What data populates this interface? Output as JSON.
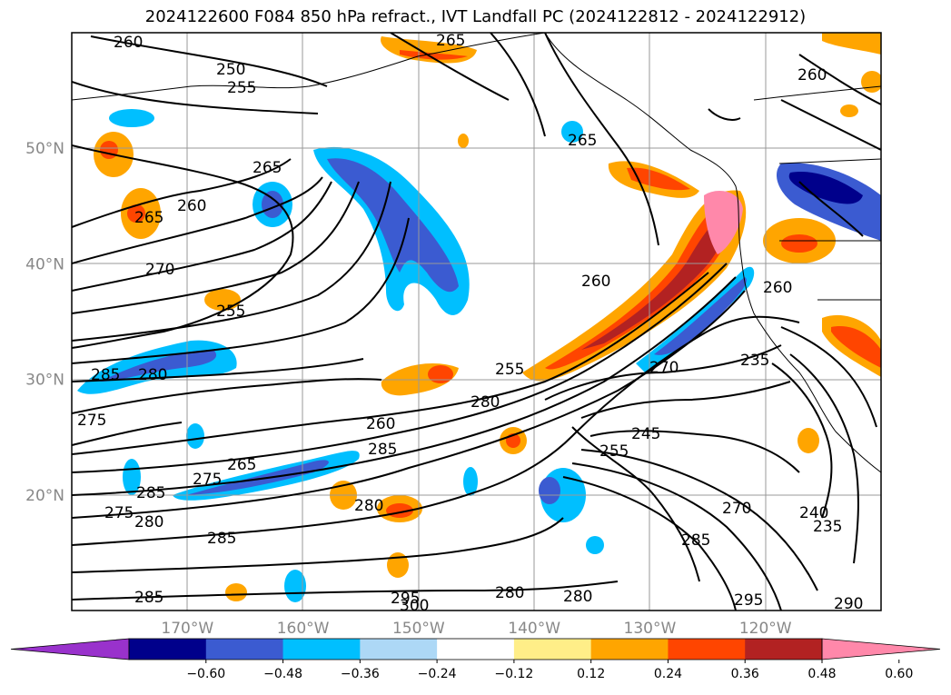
{
  "title": "2024122600 F084 850 hPa refract., IVT Landfall PC (2024122812 - 2024122912)",
  "map": {
    "lon_range": [
      -180,
      -110
    ],
    "lat_range": [
      10,
      60
    ],
    "lat_ticks": [
      {
        "value": 50,
        "label": "50°N"
      },
      {
        "value": 40,
        "label": "40°N"
      },
      {
        "value": 30,
        "label": "30°N"
      },
      {
        "value": 20,
        "label": "20°N"
      }
    ],
    "lon_ticks": [
      {
        "value": -170,
        "label": "170°W"
      },
      {
        "value": -160,
        "label": "160°W"
      },
      {
        "value": -150,
        "label": "150°W"
      },
      {
        "value": -140,
        "label": "140°W"
      },
      {
        "value": -130,
        "label": "130°W"
      },
      {
        "value": -120,
        "label": "120°W"
      }
    ],
    "grid": true,
    "contour_labels": [
      "260",
      "250",
      "255",
      "265",
      "265",
      "260",
      "265",
      "270",
      "255",
      "260",
      "265",
      "260",
      "285",
      "280",
      "275",
      "255",
      "280",
      "260",
      "285",
      "265",
      "275",
      "285",
      "280",
      "280",
      "285",
      "270",
      "245",
      "255",
      "235",
      "260",
      "270",
      "285",
      "240",
      "235",
      "275",
      "295",
      "280",
      "285",
      "300",
      "290",
      "295",
      "280"
    ]
  },
  "colorbar": {
    "colors": [
      "#9932cc",
      "#00008b",
      "#3b5bd1",
      "#00bfff",
      "#add8f6",
      "#ffffff",
      "#ffee88",
      "#ffa500",
      "#ff4500",
      "#b22222",
      "#ff88aa"
    ],
    "tick_labels": [
      "-0.60",
      "-0.48",
      "-0.36",
      "-0.24",
      "-0.12",
      "0.12",
      "0.24",
      "0.36",
      "0.48",
      "0.60"
    ],
    "extend": "both"
  }
}
